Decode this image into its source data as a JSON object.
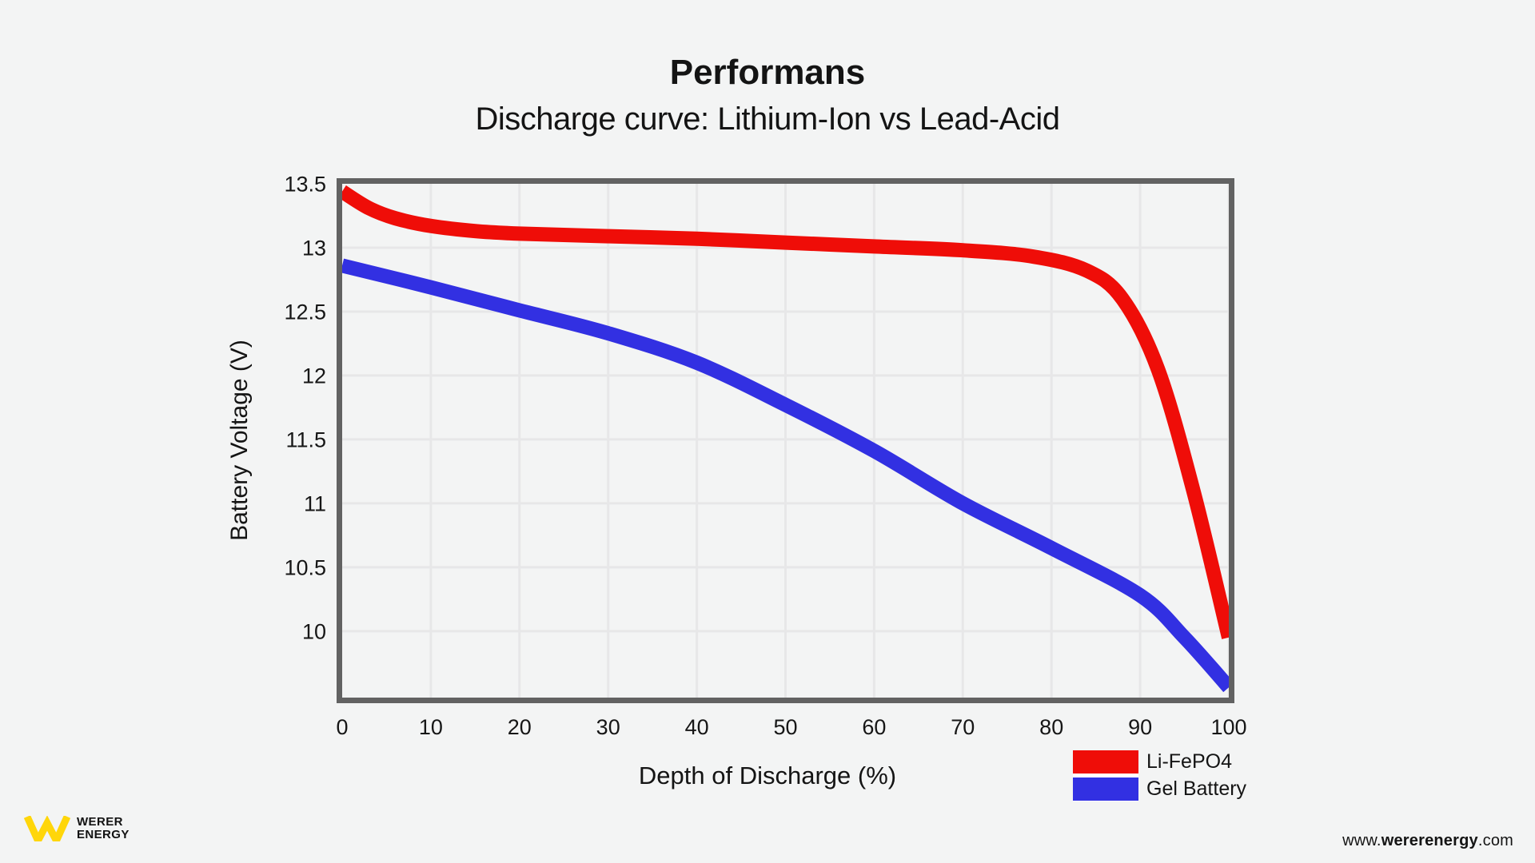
{
  "chart_data": {
    "type": "line",
    "title": "Performans",
    "subtitle": "Discharge curve: Lithium-Ion vs Lead-Acid",
    "xlabel": "Depth of Discharge (%)",
    "ylabel": "Battery Voltage (V)",
    "xlim": [
      0,
      100
    ],
    "ylim": [
      9.48,
      13.5
    ],
    "x_ticks": [
      0,
      10,
      20,
      30,
      40,
      50,
      60,
      70,
      80,
      90,
      100
    ],
    "y_ticks": [
      13.5,
      13,
      12.5,
      12,
      11.5,
      11,
      10.5,
      10
    ],
    "grid": true,
    "legend_position": "bottom-right-below-plot",
    "series": [
      {
        "name": "Li-FePO4",
        "color": "#ef0d08",
        "points": [
          [
            0,
            13.44
          ],
          [
            3,
            13.31
          ],
          [
            6,
            13.23
          ],
          [
            10,
            13.17
          ],
          [
            15,
            13.13
          ],
          [
            20,
            13.11
          ],
          [
            30,
            13.09
          ],
          [
            40,
            13.07
          ],
          [
            50,
            13.04
          ],
          [
            60,
            13.01
          ],
          [
            70,
            12.98
          ],
          [
            78,
            12.93
          ],
          [
            84,
            12.82
          ],
          [
            88,
            12.6
          ],
          [
            92,
            12.05
          ],
          [
            96,
            11.1
          ],
          [
            100,
            9.95
          ]
        ]
      },
      {
        "name": "Gel Battery",
        "color": "#3230e2",
        "points": [
          [
            0,
            12.86
          ],
          [
            10,
            12.69
          ],
          [
            20,
            12.51
          ],
          [
            30,
            12.33
          ],
          [
            40,
            12.1
          ],
          [
            50,
            11.77
          ],
          [
            60,
            11.41
          ],
          [
            70,
            11.0
          ],
          [
            80,
            10.65
          ],
          [
            90,
            10.28
          ],
          [
            95,
            9.95
          ],
          [
            100,
            9.56
          ]
        ]
      }
    ],
    "style": {
      "background": "#f3f4f4",
      "grid_color": "#e7e7e8",
      "border_color": "#626262",
      "line_width": 18
    }
  },
  "legend": {
    "items": [
      {
        "label": "Li-FePO4",
        "color": "#ef0d08"
      },
      {
        "label": "Gel Battery",
        "color": "#3230e2"
      }
    ]
  },
  "branding": {
    "logo_line1": "WERER",
    "logo_line2": "ENERGY",
    "logo_color": "#ffd60a",
    "url_prefix": "www.",
    "url_brand": "wererenergy",
    "url_suffix": ".com"
  }
}
